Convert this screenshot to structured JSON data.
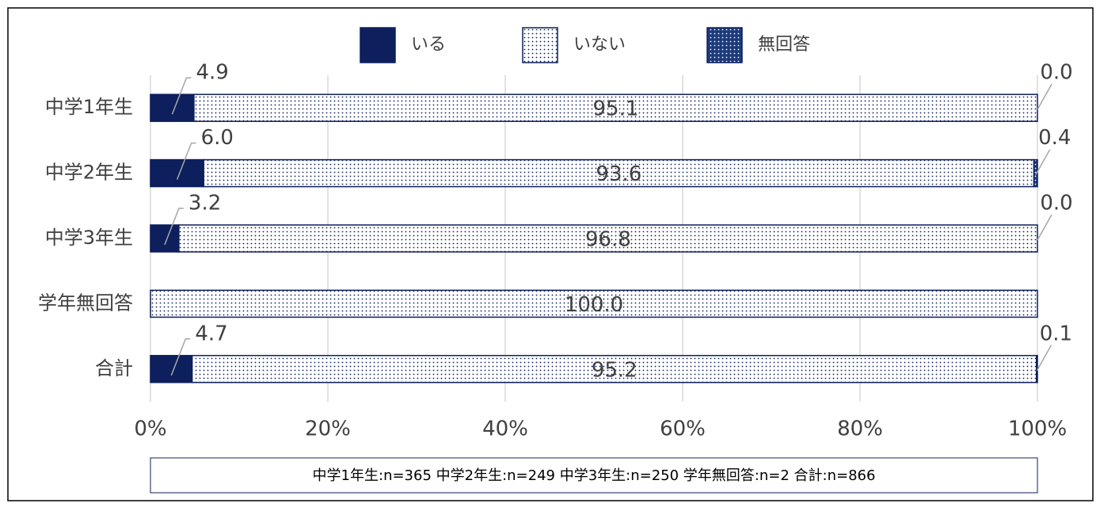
{
  "chart_data": {
    "type": "stacked-bar-horizontal",
    "categories": [
      "中学1年生",
      "中学2年生",
      "中学3年生",
      "学年無回答",
      "合計"
    ],
    "series": [
      {
        "name": "いる",
        "color": "#0d1f5c",
        "pattern": "solid",
        "values": [
          4.9,
          6.0,
          3.2,
          0,
          4.7
        ],
        "value_labels": [
          "4.9",
          "6.0",
          "3.2",
          null,
          "4.7"
        ]
      },
      {
        "name": "いない",
        "color": "#0d1f5c",
        "pattern": "dots",
        "values": [
          95.1,
          93.6,
          96.8,
          100.0,
          95.2
        ],
        "value_labels": [
          "95.1",
          "93.6",
          "96.8",
          "100.0",
          "95.2"
        ]
      },
      {
        "name": "無回答",
        "color": "#0d1f5c",
        "pattern": "dense-dots",
        "values": [
          0.0,
          0.4,
          0.0,
          0,
          0.1
        ],
        "value_labels": [
          "0.0",
          "0.4",
          "0.0",
          null,
          "0.1"
        ]
      }
    ],
    "xlim": [
      0,
      100
    ],
    "xticks": [
      {
        "value": 0,
        "label": "0%"
      },
      {
        "value": 20,
        "label": "20%"
      },
      {
        "value": 40,
        "label": "40%"
      },
      {
        "value": 60,
        "label": "60%"
      },
      {
        "value": 80,
        "label": "80%"
      },
      {
        "value": 100,
        "label": "100%"
      }
    ],
    "grid": true,
    "legend": "top",
    "note": "中学1年生:n=365 中学2年生:n=249 中学3年生:n=250 学年無回答:n=2 合計:n=866"
  }
}
